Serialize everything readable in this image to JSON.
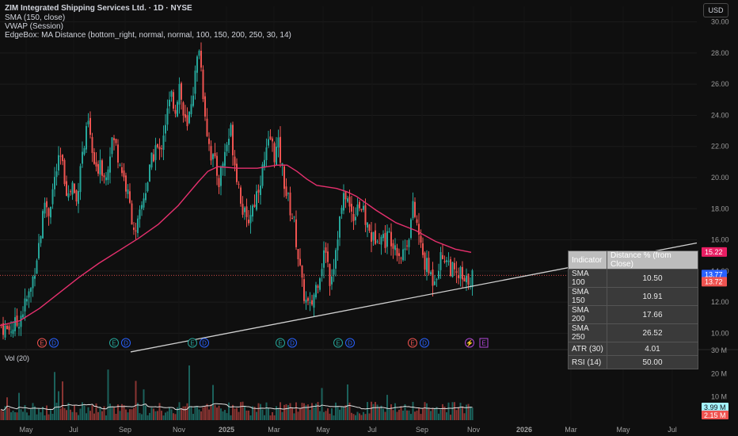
{
  "header": {
    "title": "ZIM Integrated Shipping Services Ltd. · 1D · NYSE",
    "ind1": "SMA (150, close)",
    "ind2": "VWAP (Session)",
    "ind3": "EdgeBox: MA Distance (bottom_right, normal, normal, 100, 150, 200, 250, 30, 14)"
  },
  "currency_button": "USD",
  "volume_label": "Vol (20)",
  "colors": {
    "up": "#26a69a",
    "down": "#ef5350",
    "sma": "#e6306e",
    "trend": "#d0d0d0",
    "blue": "#2962ff"
  },
  "edgebox": {
    "headers": [
      "Indicator",
      "Distance % (from Close)"
    ],
    "rows": [
      {
        "name": "SMA 100",
        "value": "10.50"
      },
      {
        "name": "SMA 150",
        "value": "10.91"
      },
      {
        "name": "SMA 200",
        "value": "17.66"
      },
      {
        "name": "SMA 250",
        "value": "26.52"
      },
      {
        "name": "ATR (30)",
        "value": "4.01"
      },
      {
        "name": "RSI (14)",
        "value": "50.00"
      }
    ]
  },
  "chart_data": {
    "type": "candlestick",
    "symbol": "ZIM",
    "title": "ZIM Integrated Shipping Services Ltd. · 1D · NYSE",
    "price_axis": {
      "min": 9,
      "max": 31,
      "ticks": [
        "30.00",
        "28.00",
        "26.00",
        "24.00",
        "22.00",
        "20.00",
        "18.00",
        "16.00",
        "14.00",
        "12.00",
        "10.00"
      ]
    },
    "volume_axis": {
      "min": 0,
      "max": 30,
      "ticks": [
        "30 M",
        "20 M",
        "10 M"
      ]
    },
    "x_ticks": [
      "May",
      "Jul",
      "Sep",
      "Nov",
      "2025",
      "Mar",
      "May",
      "Jul",
      "Sep",
      "Nov",
      "2026",
      "Mar",
      "May",
      "Jul"
    ],
    "price_labels": [
      {
        "value": 15.22,
        "text": "15.22",
        "color": "#e91e63"
      },
      {
        "value": 13.77,
        "text": "13.77",
        "color": "#2962ff"
      },
      {
        "value": 13.72,
        "text": "13.72",
        "color": "#ef5350"
      }
    ],
    "volume_labels": [
      {
        "text": "3.99 M",
        "color": "#a5f3ff"
      },
      {
        "text": "2.15 M",
        "color": "#ef5350"
      }
    ],
    "close_path": [
      [
        0,
        10.5
      ],
      [
        3,
        10.2
      ],
      [
        8,
        10.6
      ],
      [
        12,
        11.8
      ],
      [
        15,
        12.8
      ],
      [
        18,
        15.0
      ],
      [
        20,
        16.5
      ],
      [
        22,
        18.5
      ],
      [
        24,
        17.8
      ],
      [
        26,
        19.2
      ],
      [
        28,
        20.5
      ],
      [
        30,
        21.2
      ],
      [
        32,
        20.0
      ],
      [
        34,
        18.8
      ],
      [
        36,
        19.6
      ],
      [
        38,
        18.4
      ],
      [
        40,
        21.0
      ],
      [
        42,
        22.0
      ],
      [
        44,
        23.5
      ],
      [
        46,
        21.5
      ],
      [
        48,
        20.2
      ],
      [
        50,
        21.3
      ],
      [
        52,
        20.0
      ],
      [
        54,
        21.0
      ],
      [
        56,
        22.5
      ],
      [
        58,
        22.0
      ],
      [
        60,
        21.0
      ],
      [
        62,
        20.0
      ],
      [
        64,
        18.8
      ],
      [
        66,
        17.5
      ],
      [
        68,
        16.2
      ],
      [
        70,
        17.5
      ],
      [
        72,
        18.8
      ],
      [
        74,
        19.8
      ],
      [
        76,
        21.0
      ],
      [
        78,
        22.0
      ],
      [
        80,
        21.5
      ],
      [
        82,
        23.0
      ],
      [
        84,
        24.2
      ],
      [
        86,
        25.2
      ],
      [
        88,
        24.5
      ],
      [
        90,
        26.0
      ],
      [
        92,
        24.0
      ],
      [
        94,
        23.0
      ],
      [
        96,
        25.0
      ],
      [
        98,
        26.5
      ],
      [
        100,
        28.5
      ],
      [
        102,
        25.5
      ],
      [
        104,
        23.0
      ],
      [
        106,
        21.5
      ],
      [
        108,
        20.8
      ],
      [
        110,
        19.8
      ],
      [
        112,
        21.0
      ],
      [
        114,
        22.2
      ],
      [
        116,
        23.0
      ],
      [
        118,
        21.0
      ],
      [
        120,
        19.5
      ],
      [
        122,
        18.0
      ],
      [
        124,
        17.0
      ],
      [
        126,
        17.8
      ],
      [
        128,
        18.5
      ],
      [
        130,
        19.5
      ],
      [
        132,
        20.5
      ],
      [
        134,
        21.5
      ],
      [
        136,
        22.5
      ],
      [
        138,
        21.5
      ],
      [
        140,
        22.0
      ],
      [
        142,
        20.5
      ],
      [
        144,
        19.0
      ],
      [
        146,
        18.0
      ],
      [
        148,
        17.0
      ],
      [
        150,
        15.0
      ],
      [
        152,
        13.0
      ],
      [
        154,
        12.0
      ],
      [
        156,
        11.5
      ],
      [
        158,
        12.5
      ],
      [
        160,
        13.5
      ],
      [
        162,
        14.5
      ],
      [
        164,
        15.5
      ],
      [
        166,
        13.5
      ],
      [
        168,
        14.5
      ],
      [
        170,
        16.5
      ],
      [
        172,
        18.0
      ],
      [
        174,
        19.0
      ],
      [
        176,
        18.0
      ],
      [
        178,
        17.5
      ],
      [
        180,
        18.5
      ],
      [
        182,
        18.0
      ],
      [
        184,
        17.2
      ],
      [
        186,
        16.5
      ],
      [
        188,
        16.0
      ],
      [
        190,
        16.5
      ],
      [
        192,
        16.2
      ],
      [
        194,
        16.0
      ],
      [
        196,
        16.3
      ],
      [
        198,
        16.0
      ],
      [
        200,
        15.5
      ],
      [
        202,
        15.0
      ],
      [
        204,
        15.5
      ],
      [
        206,
        16.5
      ],
      [
        208,
        18.0
      ],
      [
        210,
        17.0
      ],
      [
        212,
        15.5
      ],
      [
        214,
        14.5
      ],
      [
        216,
        14.0
      ],
      [
        218,
        13.5
      ],
      [
        220,
        14.0
      ],
      [
        222,
        14.8
      ],
      [
        224,
        15.0
      ],
      [
        226,
        14.5
      ],
      [
        228,
        14.0
      ],
      [
        230,
        13.5
      ],
      [
        232,
        13.8
      ],
      [
        234,
        13.0
      ],
      [
        236,
        13.5
      ],
      [
        238,
        13.7
      ]
    ],
    "sma150_path": [
      [
        0,
        10.5
      ],
      [
        10,
        10.8
      ],
      [
        20,
        11.6
      ],
      [
        30,
        12.6
      ],
      [
        40,
        13.6
      ],
      [
        50,
        14.5
      ],
      [
        60,
        15.3
      ],
      [
        70,
        16.1
      ],
      [
        80,
        17.0
      ],
      [
        90,
        18.2
      ],
      [
        100,
        19.7
      ],
      [
        105,
        20.4
      ],
      [
        110,
        20.7
      ],
      [
        120,
        20.6
      ],
      [
        130,
        20.6
      ],
      [
        140,
        20.8
      ],
      [
        145,
        20.8
      ],
      [
        150,
        20.4
      ],
      [
        155,
        19.9
      ],
      [
        160,
        19.5
      ],
      [
        170,
        19.3
      ],
      [
        175,
        19.1
      ],
      [
        180,
        18.8
      ],
      [
        190,
        17.9
      ],
      [
        200,
        17.1
      ],
      [
        210,
        16.6
      ],
      [
        220,
        15.9
      ],
      [
        230,
        15.4
      ],
      [
        238,
        15.2
      ]
    ],
    "trendline": {
      "from": [
        66,
        8.8
      ],
      "to": [
        352,
        15.8
      ]
    },
    "sma_label": "SMA 150",
    "x_range": [
      0,
      352
    ]
  }
}
